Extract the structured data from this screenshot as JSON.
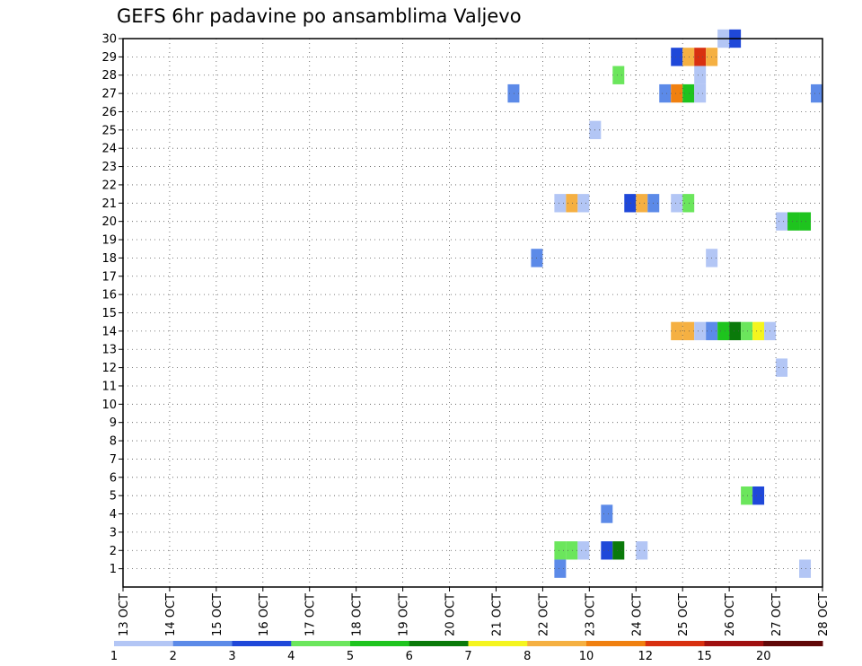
{
  "title": "GEFS 6hr padavine po ansamblima Valjevo",
  "chart_data": {
    "type": "heatmap",
    "title": "GEFS 6hr padavine po ansamblima Valjevo",
    "x_ticks": [
      "13 OCT",
      "14 OCT",
      "15 OCT",
      "16 OCT",
      "17 OCT",
      "18 OCT",
      "19 OCT",
      "20 OCT",
      "21 OCT",
      "22 OCT",
      "23 OCT",
      "24 OCT",
      "25 OCT",
      "26 OCT",
      "27 OCT",
      "28 OCT"
    ],
    "y_range": [
      0,
      30
    ],
    "y_ticks": [
      1,
      2,
      3,
      4,
      5,
      6,
      7,
      8,
      9,
      10,
      11,
      12,
      13,
      14,
      15,
      16,
      17,
      18,
      19,
      20,
      21,
      22,
      23,
      24,
      25,
      26,
      27,
      28,
      29,
      30
    ],
    "time_step_hours": 6,
    "grid": true,
    "legend_position": "bottom",
    "colorbar": {
      "labels": [
        "1",
        "2",
        "3",
        "4",
        "5",
        "6",
        "7",
        "8",
        "10",
        "12",
        "15",
        "20"
      ],
      "colors": [
        "#b3c6f5",
        "#5c8ae8",
        "#1f48d9",
        "#6be65c",
        "#1ec41e",
        "#0a7a0a",
        "#f5f51e",
        "#f5b042",
        "#f08010",
        "#d83010",
        "#a01010",
        "#600808"
      ]
    },
    "cells": [
      {
        "member": 30,
        "t": "25 OCT 18Z",
        "color": "#b3c6f5"
      },
      {
        "member": 30,
        "t": "26 OCT 00Z",
        "color": "#1f48d9"
      },
      {
        "member": 29,
        "t": "24 OCT 18Z",
        "color": "#1f48d9"
      },
      {
        "member": 29,
        "t": "25 OCT 00Z",
        "color": "#f5b042"
      },
      {
        "member": 29,
        "t": "25 OCT 06Z",
        "color": "#d83010"
      },
      {
        "member": 29,
        "t": "25 OCT 12Z",
        "color": "#f5b042"
      },
      {
        "member": 28,
        "t": "23 OCT 12Z",
        "color": "#6be65c"
      },
      {
        "member": 28,
        "t": "25 OCT 06Z",
        "color": "#b3c6f5"
      },
      {
        "member": 27,
        "t": "21 OCT 06Z",
        "color": "#5c8ae8"
      },
      {
        "member": 27,
        "t": "24 OCT 12Z",
        "color": "#5c8ae8"
      },
      {
        "member": 27,
        "t": "24 OCT 18Z",
        "color": "#f08010"
      },
      {
        "member": 27,
        "t": "25 OCT 00Z",
        "color": "#1ec41e"
      },
      {
        "member": 27,
        "t": "25 OCT 06Z",
        "color": "#b3c6f5"
      },
      {
        "member": 27,
        "t": "27 OCT 18Z",
        "color": "#5c8ae8"
      },
      {
        "member": 25,
        "t": "23 OCT 00Z",
        "color": "#b3c6f5"
      },
      {
        "member": 21,
        "t": "22 OCT 06Z",
        "color": "#b3c6f5"
      },
      {
        "member": 21,
        "t": "22 OCT 12Z",
        "color": "#f5b042"
      },
      {
        "member": 21,
        "t": "22 OCT 18Z",
        "color": "#b3c6f5"
      },
      {
        "member": 21,
        "t": "23 OCT 18Z",
        "color": "#1f48d9"
      },
      {
        "member": 21,
        "t": "24 OCT 00Z",
        "color": "#f5b042"
      },
      {
        "member": 21,
        "t": "24 OCT 06Z",
        "color": "#5c8ae8"
      },
      {
        "member": 21,
        "t": "24 OCT 18Z",
        "color": "#b3c6f5"
      },
      {
        "member": 21,
        "t": "25 OCT 00Z",
        "color": "#6be65c"
      },
      {
        "member": 20,
        "t": "27 OCT 00Z",
        "color": "#b3c6f5"
      },
      {
        "member": 20,
        "t": "27 OCT 06Z",
        "color": "#1ec41e"
      },
      {
        "member": 20,
        "t": "27 OCT 12Z",
        "color": "#1ec41e"
      },
      {
        "member": 18,
        "t": "21 OCT 18Z",
        "color": "#5c8ae8"
      },
      {
        "member": 18,
        "t": "25 OCT 12Z",
        "color": "#b3c6f5"
      },
      {
        "member": 14,
        "t": "24 OCT 18Z",
        "color": "#f5b042"
      },
      {
        "member": 14,
        "t": "25 OCT 00Z",
        "color": "#f5b042"
      },
      {
        "member": 14,
        "t": "25 OCT 06Z",
        "color": "#b3c6f5"
      },
      {
        "member": 14,
        "t": "25 OCT 12Z",
        "color": "#5c8ae8"
      },
      {
        "member": 14,
        "t": "25 OCT 18Z",
        "color": "#1ec41e"
      },
      {
        "member": 14,
        "t": "26 OCT 00Z",
        "color": "#0a7a0a"
      },
      {
        "member": 14,
        "t": "26 OCT 06Z",
        "color": "#6be65c"
      },
      {
        "member": 14,
        "t": "26 OCT 12Z",
        "color": "#f5f51e"
      },
      {
        "member": 14,
        "t": "26 OCT 18Z",
        "color": "#b3c6f5"
      },
      {
        "member": 12,
        "t": "27 OCT 00Z",
        "color": "#b3c6f5"
      },
      {
        "member": 5,
        "t": "26 OCT 06Z",
        "color": "#6be65c"
      },
      {
        "member": 5,
        "t": "26 OCT 12Z",
        "color": "#1f48d9"
      },
      {
        "member": 4,
        "t": "23 OCT 06Z",
        "color": "#5c8ae8"
      },
      {
        "member": 2,
        "t": "22 OCT 06Z",
        "color": "#6be65c"
      },
      {
        "member": 2,
        "t": "22 OCT 12Z",
        "color": "#6be65c"
      },
      {
        "member": 2,
        "t": "22 OCT 18Z",
        "color": "#b3c6f5"
      },
      {
        "member": 2,
        "t": "23 OCT 06Z",
        "color": "#1f48d9"
      },
      {
        "member": 2,
        "t": "23 OCT 12Z",
        "color": "#0a7a0a"
      },
      {
        "member": 2,
        "t": "24 OCT 00Z",
        "color": "#b3c6f5"
      },
      {
        "member": 1,
        "t": "22 OCT 06Z",
        "color": "#5c8ae8"
      },
      {
        "member": 1,
        "t": "27 OCT 12Z",
        "color": "#b3c6f5"
      }
    ]
  }
}
